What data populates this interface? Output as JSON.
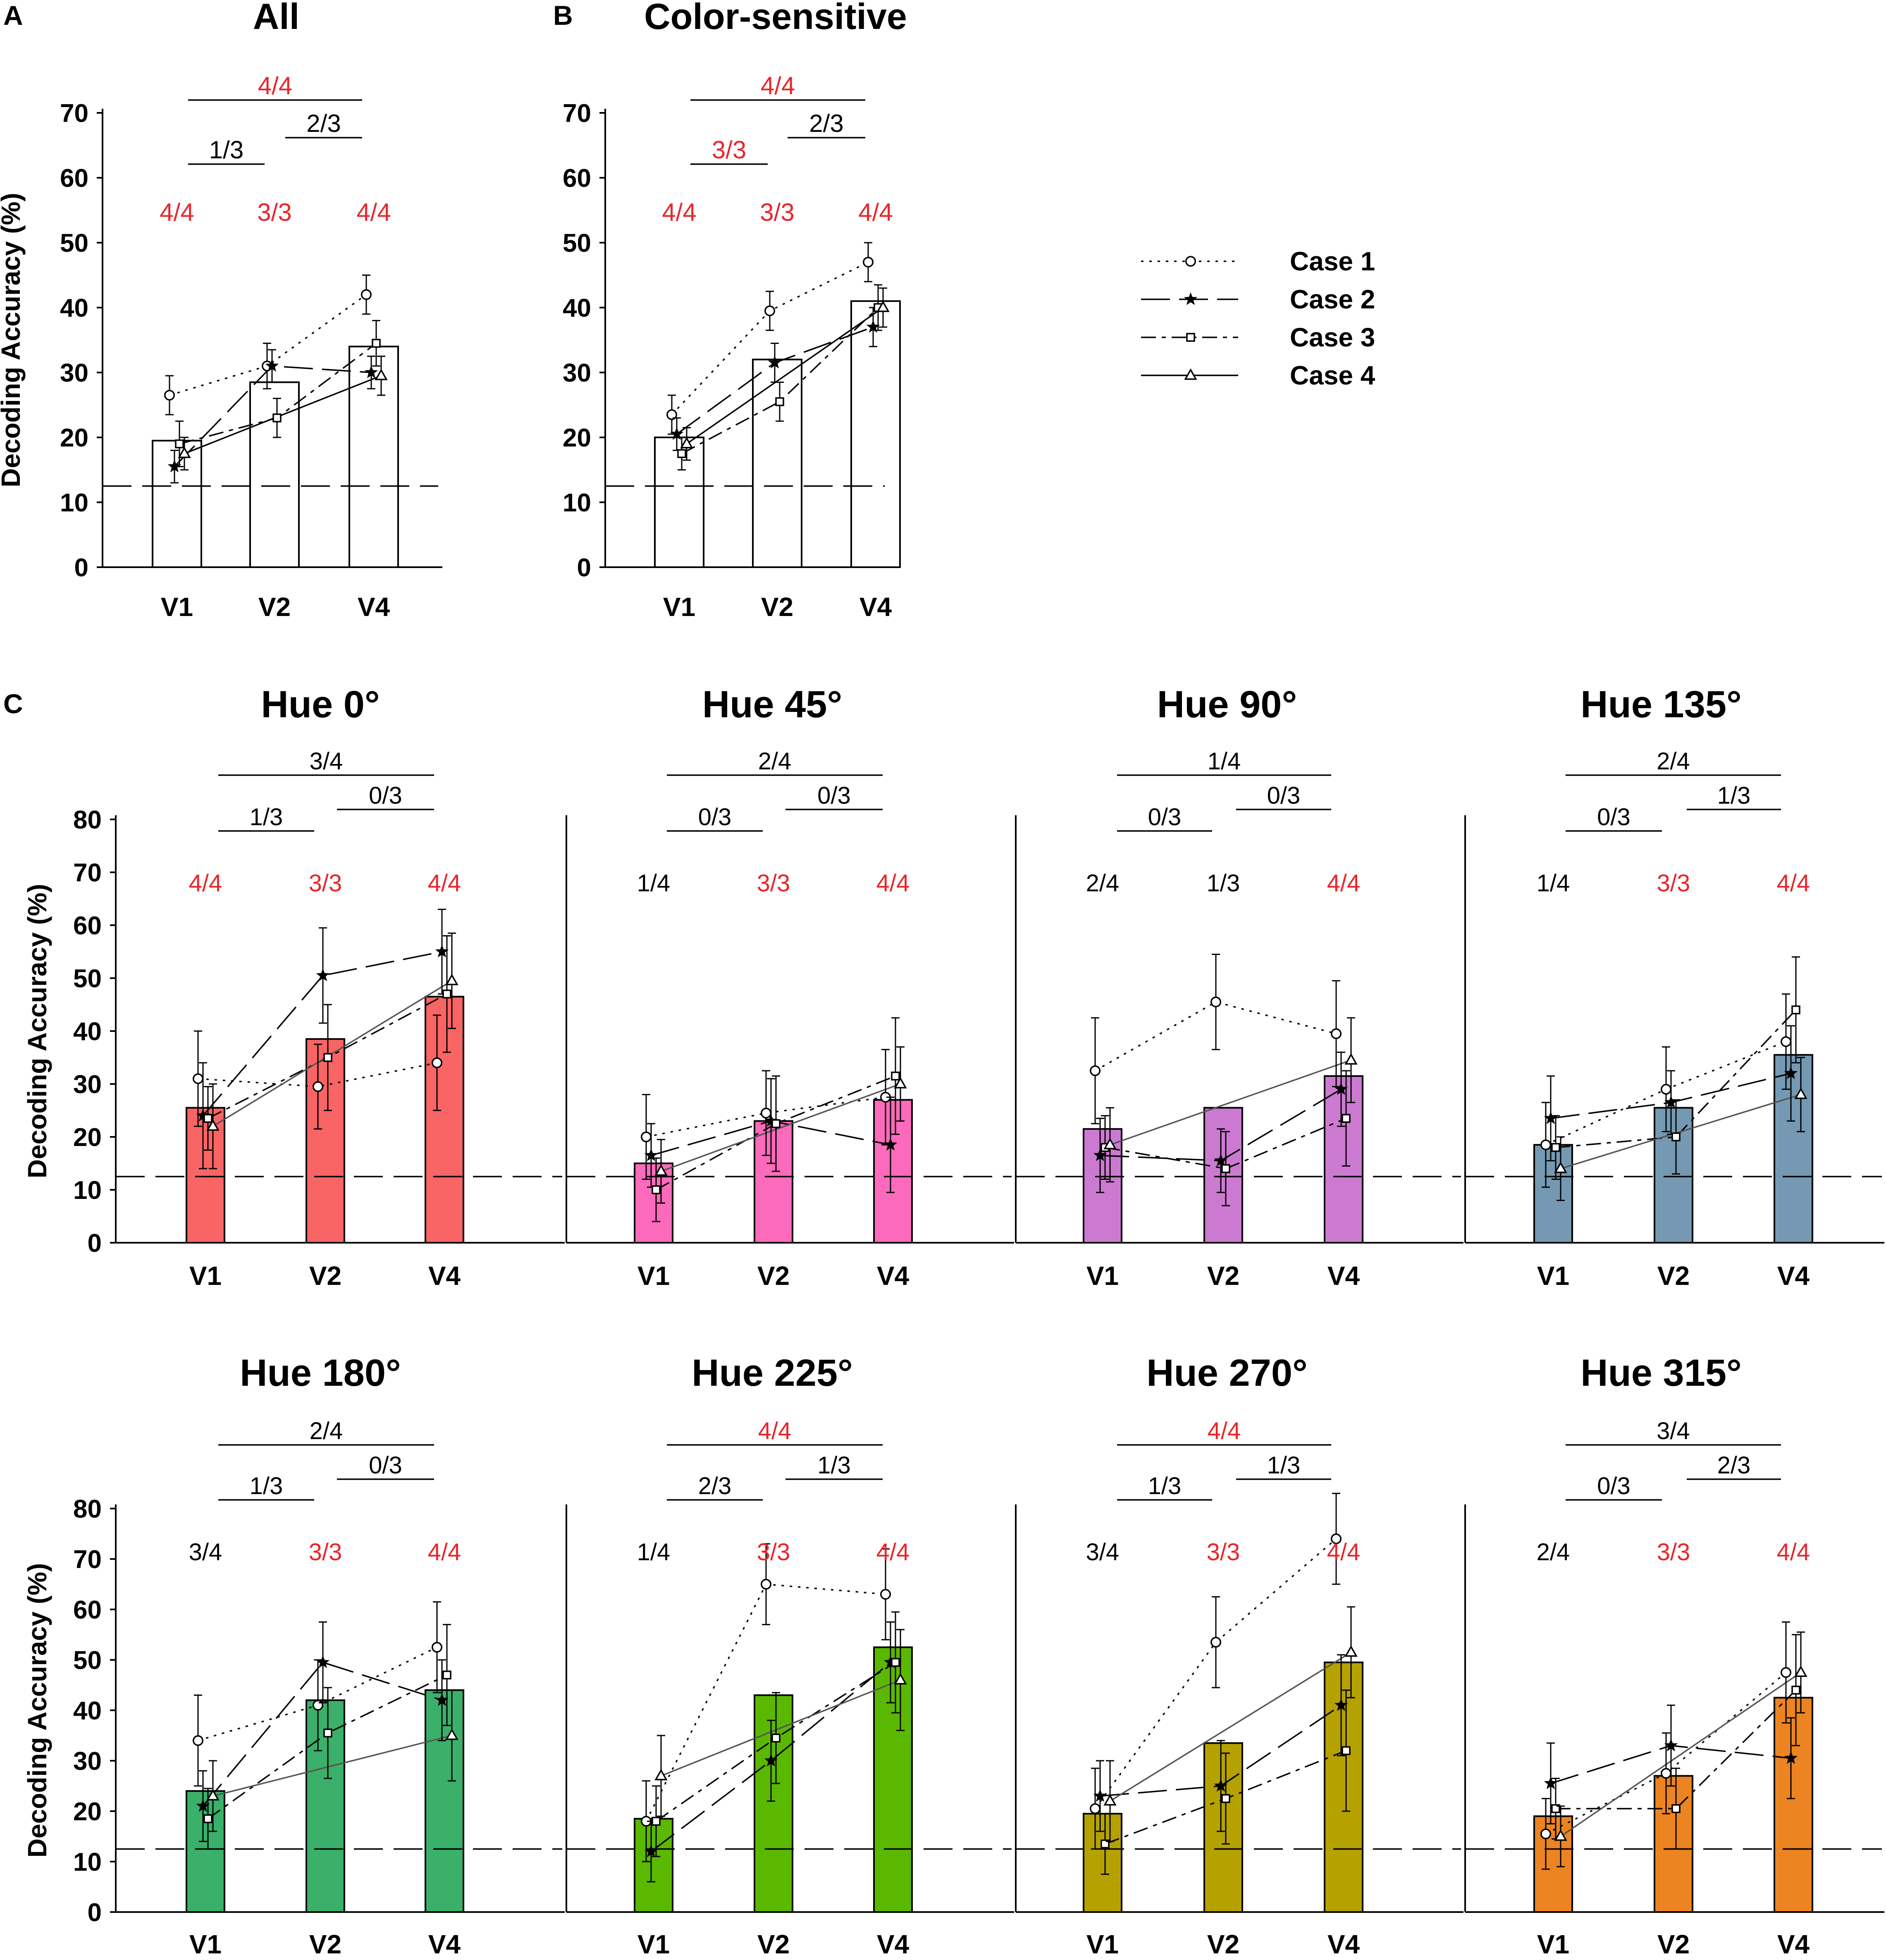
{
  "figure": {
    "panel_labels": [
      "A",
      "B",
      "C"
    ],
    "legend": [
      {
        "label": "Case 1",
        "marker": "circle",
        "dash": "dotted"
      },
      {
        "label": "Case 2",
        "marker": "star",
        "dash": "long-dash"
      },
      {
        "label": "Case 3",
        "marker": "square",
        "dash": "dash-dot"
      },
      {
        "label": "Case 4",
        "marker": "triangle",
        "dash": "solid"
      }
    ],
    "colors": {
      "text": "#000000",
      "significant": "#e8262b",
      "case4_line": "#555555"
    }
  },
  "chart_data": [
    {
      "type": "bar",
      "panel": "A",
      "title": "All",
      "categories": [
        "V1",
        "V2",
        "V4"
      ],
      "ylabel": "Decoding Accuracy (%)",
      "ylim": [
        0,
        70
      ],
      "yticks": [
        0,
        10,
        20,
        30,
        40,
        50,
        60,
        70
      ],
      "chance": 12.5,
      "bar_values": [
        19.5,
        28.5,
        34
      ],
      "bar_color": "#ffffff",
      "series": [
        {
          "name": "Case 1",
          "values": [
            26.5,
            31,
            42
          ],
          "err": [
            3,
            3.5,
            3
          ]
        },
        {
          "name": "Case 2",
          "values": [
            15.5,
            31,
            30
          ],
          "err": [
            2.5,
            2.5,
            2.5
          ]
        },
        {
          "name": "Case 3",
          "values": [
            19,
            23,
            34.5
          ],
          "err": [
            3.5,
            3,
            3.5
          ]
        },
        {
          "name": "Case 4",
          "values": [
            17.5,
            null,
            29.5
          ],
          "err": [
            2.5,
            null,
            3
          ]
        }
      ],
      "sig_labels": [
        {
          "text": "4/4",
          "sig": true
        },
        {
          "text": "3/3",
          "sig": true
        },
        {
          "text": "4/4",
          "sig": true
        }
      ],
      "comparisons": [
        {
          "text": "1/3",
          "sig": false
        },
        {
          "text": "2/3",
          "sig": false
        },
        {
          "text": "4/4",
          "sig": true
        }
      ]
    },
    {
      "type": "bar",
      "panel": "B",
      "title": "Color-sensitive",
      "categories": [
        "V1",
        "V2",
        "V4"
      ],
      "ylabel": "",
      "ylim": [
        0,
        70
      ],
      "yticks": [
        0,
        10,
        20,
        30,
        40,
        50,
        60,
        70
      ],
      "chance": 12.5,
      "bar_values": [
        20,
        32,
        41
      ],
      "bar_color": "#ffffff",
      "series": [
        {
          "name": "Case 1",
          "values": [
            23.5,
            39.5,
            47
          ],
          "err": [
            3,
            3,
            3
          ]
        },
        {
          "name": "Case 2",
          "values": [
            20.5,
            31.5,
            37
          ],
          "err": [
            2.5,
            3,
            3
          ]
        },
        {
          "name": "Case 3",
          "values": [
            17.5,
            25.5,
            40
          ],
          "err": [
            2.5,
            3,
            3.5
          ]
        },
        {
          "name": "Case 4",
          "values": [
            19,
            null,
            40
          ],
          "err": [
            2.5,
            null,
            3
          ]
        }
      ],
      "sig_labels": [
        {
          "text": "4/4",
          "sig": true
        },
        {
          "text": "3/3",
          "sig": true
        },
        {
          "text": "4/4",
          "sig": true
        }
      ],
      "comparisons": [
        {
          "text": "3/3",
          "sig": true
        },
        {
          "text": "2/3",
          "sig": false
        },
        {
          "text": "4/4",
          "sig": true
        }
      ]
    },
    {
      "type": "bar",
      "panel": "C",
      "title": "Hue 0°",
      "categories": [
        "V1",
        "V2",
        "V4"
      ],
      "ylabel": "Decoding Accuracy (%)",
      "ylim": [
        0,
        80
      ],
      "yticks": [
        0,
        10,
        20,
        30,
        40,
        50,
        60,
        70,
        80
      ],
      "chance": 12.5,
      "bar_values": [
        25.5,
        38.5,
        46.5
      ],
      "bar_color": "#f96464",
      "series": [
        {
          "name": "Case 1",
          "values": [
            31,
            29.5,
            34
          ],
          "err": [
            9,
            8,
            9
          ]
        },
        {
          "name": "Case 2",
          "values": [
            24,
            50.5,
            55
          ],
          "err": [
            10,
            9,
            8
          ]
        },
        {
          "name": "Case 3",
          "values": [
            23.5,
            35,
            47
          ],
          "err": [
            6,
            10,
            11
          ]
        },
        {
          "name": "Case 4",
          "values": [
            22,
            null,
            49.5
          ],
          "err": [
            8,
            null,
            9
          ]
        }
      ],
      "sig_labels": [
        {
          "text": "4/4",
          "sig": true
        },
        {
          "text": "3/3",
          "sig": true
        },
        {
          "text": "4/4",
          "sig": true
        }
      ],
      "comparisons": [
        {
          "text": "1/3",
          "sig": false
        },
        {
          "text": "0/3",
          "sig": false
        },
        {
          "text": "3/4",
          "sig": false
        }
      ]
    },
    {
      "type": "bar",
      "panel": "C",
      "title": "Hue 45°",
      "categories": [
        "V1",
        "V2",
        "V4"
      ],
      "ylabel": "",
      "ylim": [
        0,
        80
      ],
      "yticks": [],
      "chance": 12.5,
      "bar_values": [
        15,
        23,
        27
      ],
      "bar_color": "#fc6abb",
      "series": [
        {
          "name": "Case 1",
          "values": [
            20,
            24.5,
            27.5
          ],
          "err": [
            8,
            8,
            9
          ]
        },
        {
          "name": "Case 2",
          "values": [
            16.5,
            23,
            18.5
          ],
          "err": [
            6,
            8,
            9
          ]
        },
        {
          "name": "Case 3",
          "values": [
            10,
            22.5,
            31.5
          ],
          "err": [
            6,
            9,
            11
          ]
        },
        {
          "name": "Case 4",
          "values": [
            13.5,
            null,
            30
          ],
          "err": [
            6,
            null,
            7
          ]
        }
      ],
      "sig_labels": [
        {
          "text": "1/4",
          "sig": false
        },
        {
          "text": "3/3",
          "sig": true
        },
        {
          "text": "4/4",
          "sig": true
        }
      ],
      "comparisons": [
        {
          "text": "0/3",
          "sig": false
        },
        {
          "text": "0/3",
          "sig": false
        },
        {
          "text": "2/4",
          "sig": false
        }
      ]
    },
    {
      "type": "bar",
      "panel": "C",
      "title": "Hue 90°",
      "categories": [
        "V1",
        "V2",
        "V4"
      ],
      "ylabel": "",
      "ylim": [
        0,
        80
      ],
      "yticks": [],
      "chance": 12.5,
      "bar_values": [
        21.5,
        25.5,
        31.5
      ],
      "bar_color": "#cc7ad1",
      "series": [
        {
          "name": "Case 1",
          "values": [
            32.5,
            45.5,
            39.5
          ],
          "err": [
            10,
            9,
            10
          ]
        },
        {
          "name": "Case 2",
          "values": [
            16.5,
            15.5,
            29
          ],
          "err": [
            7,
            6,
            7
          ]
        },
        {
          "name": "Case 3",
          "values": [
            18,
            14,
            23.5
          ],
          "err": [
            6,
            7,
            9
          ]
        },
        {
          "name": "Case 4",
          "values": [
            18.5,
            null,
            34.5
          ],
          "err": [
            7,
            null,
            8
          ]
        }
      ],
      "sig_labels": [
        {
          "text": "2/4",
          "sig": false
        },
        {
          "text": "1/3",
          "sig": false
        },
        {
          "text": "4/4",
          "sig": true
        }
      ],
      "comparisons": [
        {
          "text": "0/3",
          "sig": false
        },
        {
          "text": "0/3",
          "sig": false
        },
        {
          "text": "1/4",
          "sig": false
        }
      ]
    },
    {
      "type": "bar",
      "panel": "C",
      "title": "Hue 135°",
      "categories": [
        "V1",
        "V2",
        "V4"
      ],
      "ylabel": "",
      "ylim": [
        0,
        80
      ],
      "yticks": [],
      "chance": 12.5,
      "bar_values": [
        18.5,
        25.5,
        35.5
      ],
      "bar_color": "#7599b3",
      "series": [
        {
          "name": "Case 1",
          "values": [
            18.5,
            29,
            38
          ],
          "err": [
            8,
            8,
            9
          ]
        },
        {
          "name": "Case 2",
          "values": [
            23.5,
            26.5,
            32
          ],
          "err": [
            8,
            6,
            9
          ]
        },
        {
          "name": "Case 3",
          "values": [
            18,
            20,
            44
          ],
          "err": [
            6,
            7,
            10
          ]
        },
        {
          "name": "Case 4",
          "values": [
            14,
            null,
            28
          ],
          "err": [
            6,
            null,
            7
          ]
        }
      ],
      "sig_labels": [
        {
          "text": "1/4",
          "sig": false
        },
        {
          "text": "3/3",
          "sig": true
        },
        {
          "text": "4/4",
          "sig": true
        }
      ],
      "comparisons": [
        {
          "text": "0/3",
          "sig": false
        },
        {
          "text": "1/3",
          "sig": false
        },
        {
          "text": "2/4",
          "sig": false
        }
      ]
    },
    {
      "type": "bar",
      "panel": "C",
      "title": "Hue 180°",
      "categories": [
        "V1",
        "V2",
        "V4"
      ],
      "ylabel": "Decoding Accuracy (%)",
      "ylim": [
        0,
        80
      ],
      "yticks": [
        0,
        10,
        20,
        30,
        40,
        50,
        60,
        70,
        80
      ],
      "chance": 12.5,
      "bar_values": [
        24,
        42,
        44
      ],
      "bar_color": "#3ab06a",
      "series": [
        {
          "name": "Case 1",
          "values": [
            34,
            41,
            52.5
          ],
          "err": [
            9,
            9,
            9
          ]
        },
        {
          "name": "Case 2",
          "values": [
            21,
            49.5,
            42
          ],
          "err": [
            7,
            8,
            8
          ]
        },
        {
          "name": "Case 3",
          "values": [
            18.5,
            35.5,
            47
          ],
          "err": [
            6,
            9,
            10
          ]
        },
        {
          "name": "Case 4",
          "values": [
            23,
            null,
            35
          ],
          "err": [
            7,
            null,
            9
          ]
        }
      ],
      "sig_labels": [
        {
          "text": "3/4",
          "sig": false
        },
        {
          "text": "3/3",
          "sig": true
        },
        {
          "text": "4/4",
          "sig": true
        }
      ],
      "comparisons": [
        {
          "text": "1/3",
          "sig": false
        },
        {
          "text": "0/3",
          "sig": false
        },
        {
          "text": "2/4",
          "sig": false
        }
      ]
    },
    {
      "type": "bar",
      "panel": "C",
      "title": "Hue 225°",
      "categories": [
        "V1",
        "V2",
        "V4"
      ],
      "ylabel": "",
      "ylim": [
        0,
        80
      ],
      "yticks": [],
      "chance": 12.5,
      "bar_values": [
        18.5,
        43,
        52.5
      ],
      "bar_color": "#5bb800",
      "series": [
        {
          "name": "Case 1",
          "values": [
            18,
            65,
            63
          ],
          "err": [
            8,
            8,
            9
          ]
        },
        {
          "name": "Case 2",
          "values": [
            12,
            30,
            49.5
          ],
          "err": [
            6,
            8,
            8
          ]
        },
        {
          "name": "Case 3",
          "values": [
            18,
            34.5,
            49.5
          ],
          "err": [
            7,
            9,
            10
          ]
        },
        {
          "name": "Case 4",
          "values": [
            27,
            null,
            46
          ],
          "err": [
            8,
            null,
            10
          ]
        }
      ],
      "sig_labels": [
        {
          "text": "1/4",
          "sig": false
        },
        {
          "text": "3/3",
          "sig": true
        },
        {
          "text": "4/4",
          "sig": true
        }
      ],
      "comparisons": [
        {
          "text": "2/3",
          "sig": false
        },
        {
          "text": "1/3",
          "sig": false
        },
        {
          "text": "4/4",
          "sig": true
        }
      ]
    },
    {
      "type": "bar",
      "panel": "C",
      "title": "Hue 270°",
      "categories": [
        "V1",
        "V2",
        "V4"
      ],
      "ylabel": "",
      "ylim": [
        0,
        80
      ],
      "yticks": [],
      "chance": 12.5,
      "bar_values": [
        19.5,
        33.5,
        49.5
      ],
      "bar_color": "#b5a200",
      "series": [
        {
          "name": "Case 1",
          "values": [
            20.5,
            53.5,
            74
          ],
          "err": [
            8,
            9,
            9
          ]
        },
        {
          "name": "Case 2",
          "values": [
            23,
            25,
            41
          ],
          "err": [
            7,
            9,
            10
          ]
        },
        {
          "name": "Case 3",
          "values": [
            13.5,
            22.5,
            32
          ],
          "err": [
            6,
            9,
            12
          ]
        },
        {
          "name": "Case 4",
          "values": [
            22,
            null,
            51.5
          ],
          "err": [
            8,
            null,
            9
          ]
        }
      ],
      "sig_labels": [
        {
          "text": "3/4",
          "sig": false
        },
        {
          "text": "3/3",
          "sig": true
        },
        {
          "text": "4/4",
          "sig": true
        }
      ],
      "comparisons": [
        {
          "text": "1/3",
          "sig": false
        },
        {
          "text": "1/3",
          "sig": false
        },
        {
          "text": "4/4",
          "sig": true
        }
      ]
    },
    {
      "type": "bar",
      "panel": "C",
      "title": "Hue 315°",
      "categories": [
        "V1",
        "V2",
        "V4"
      ],
      "ylabel": "",
      "ylim": [
        0,
        80
      ],
      "yticks": [],
      "chance": 12.5,
      "bar_values": [
        19,
        27,
        42.5
      ],
      "bar_color": "#ec8421",
      "series": [
        {
          "name": "Case 1",
          "values": [
            15.5,
            27.5,
            47.5
          ],
          "err": [
            7,
            8,
            10
          ]
        },
        {
          "name": "Case 2",
          "values": [
            25.5,
            33,
            30.5
          ],
          "err": [
            8,
            8,
            8
          ]
        },
        {
          "name": "Case 3",
          "values": [
            20.5,
            20.5,
            44
          ],
          "err": [
            6,
            8,
            11
          ]
        },
        {
          "name": "Case 4",
          "values": [
            15,
            null,
            47.5
          ],
          "err": [
            6,
            null,
            8
          ]
        }
      ],
      "sig_labels": [
        {
          "text": "2/4",
          "sig": false
        },
        {
          "text": "3/3",
          "sig": true
        },
        {
          "text": "4/4",
          "sig": true
        }
      ],
      "comparisons": [
        {
          "text": "0/3",
          "sig": false
        },
        {
          "text": "2/3",
          "sig": false
        },
        {
          "text": "3/4",
          "sig": false
        }
      ]
    }
  ]
}
